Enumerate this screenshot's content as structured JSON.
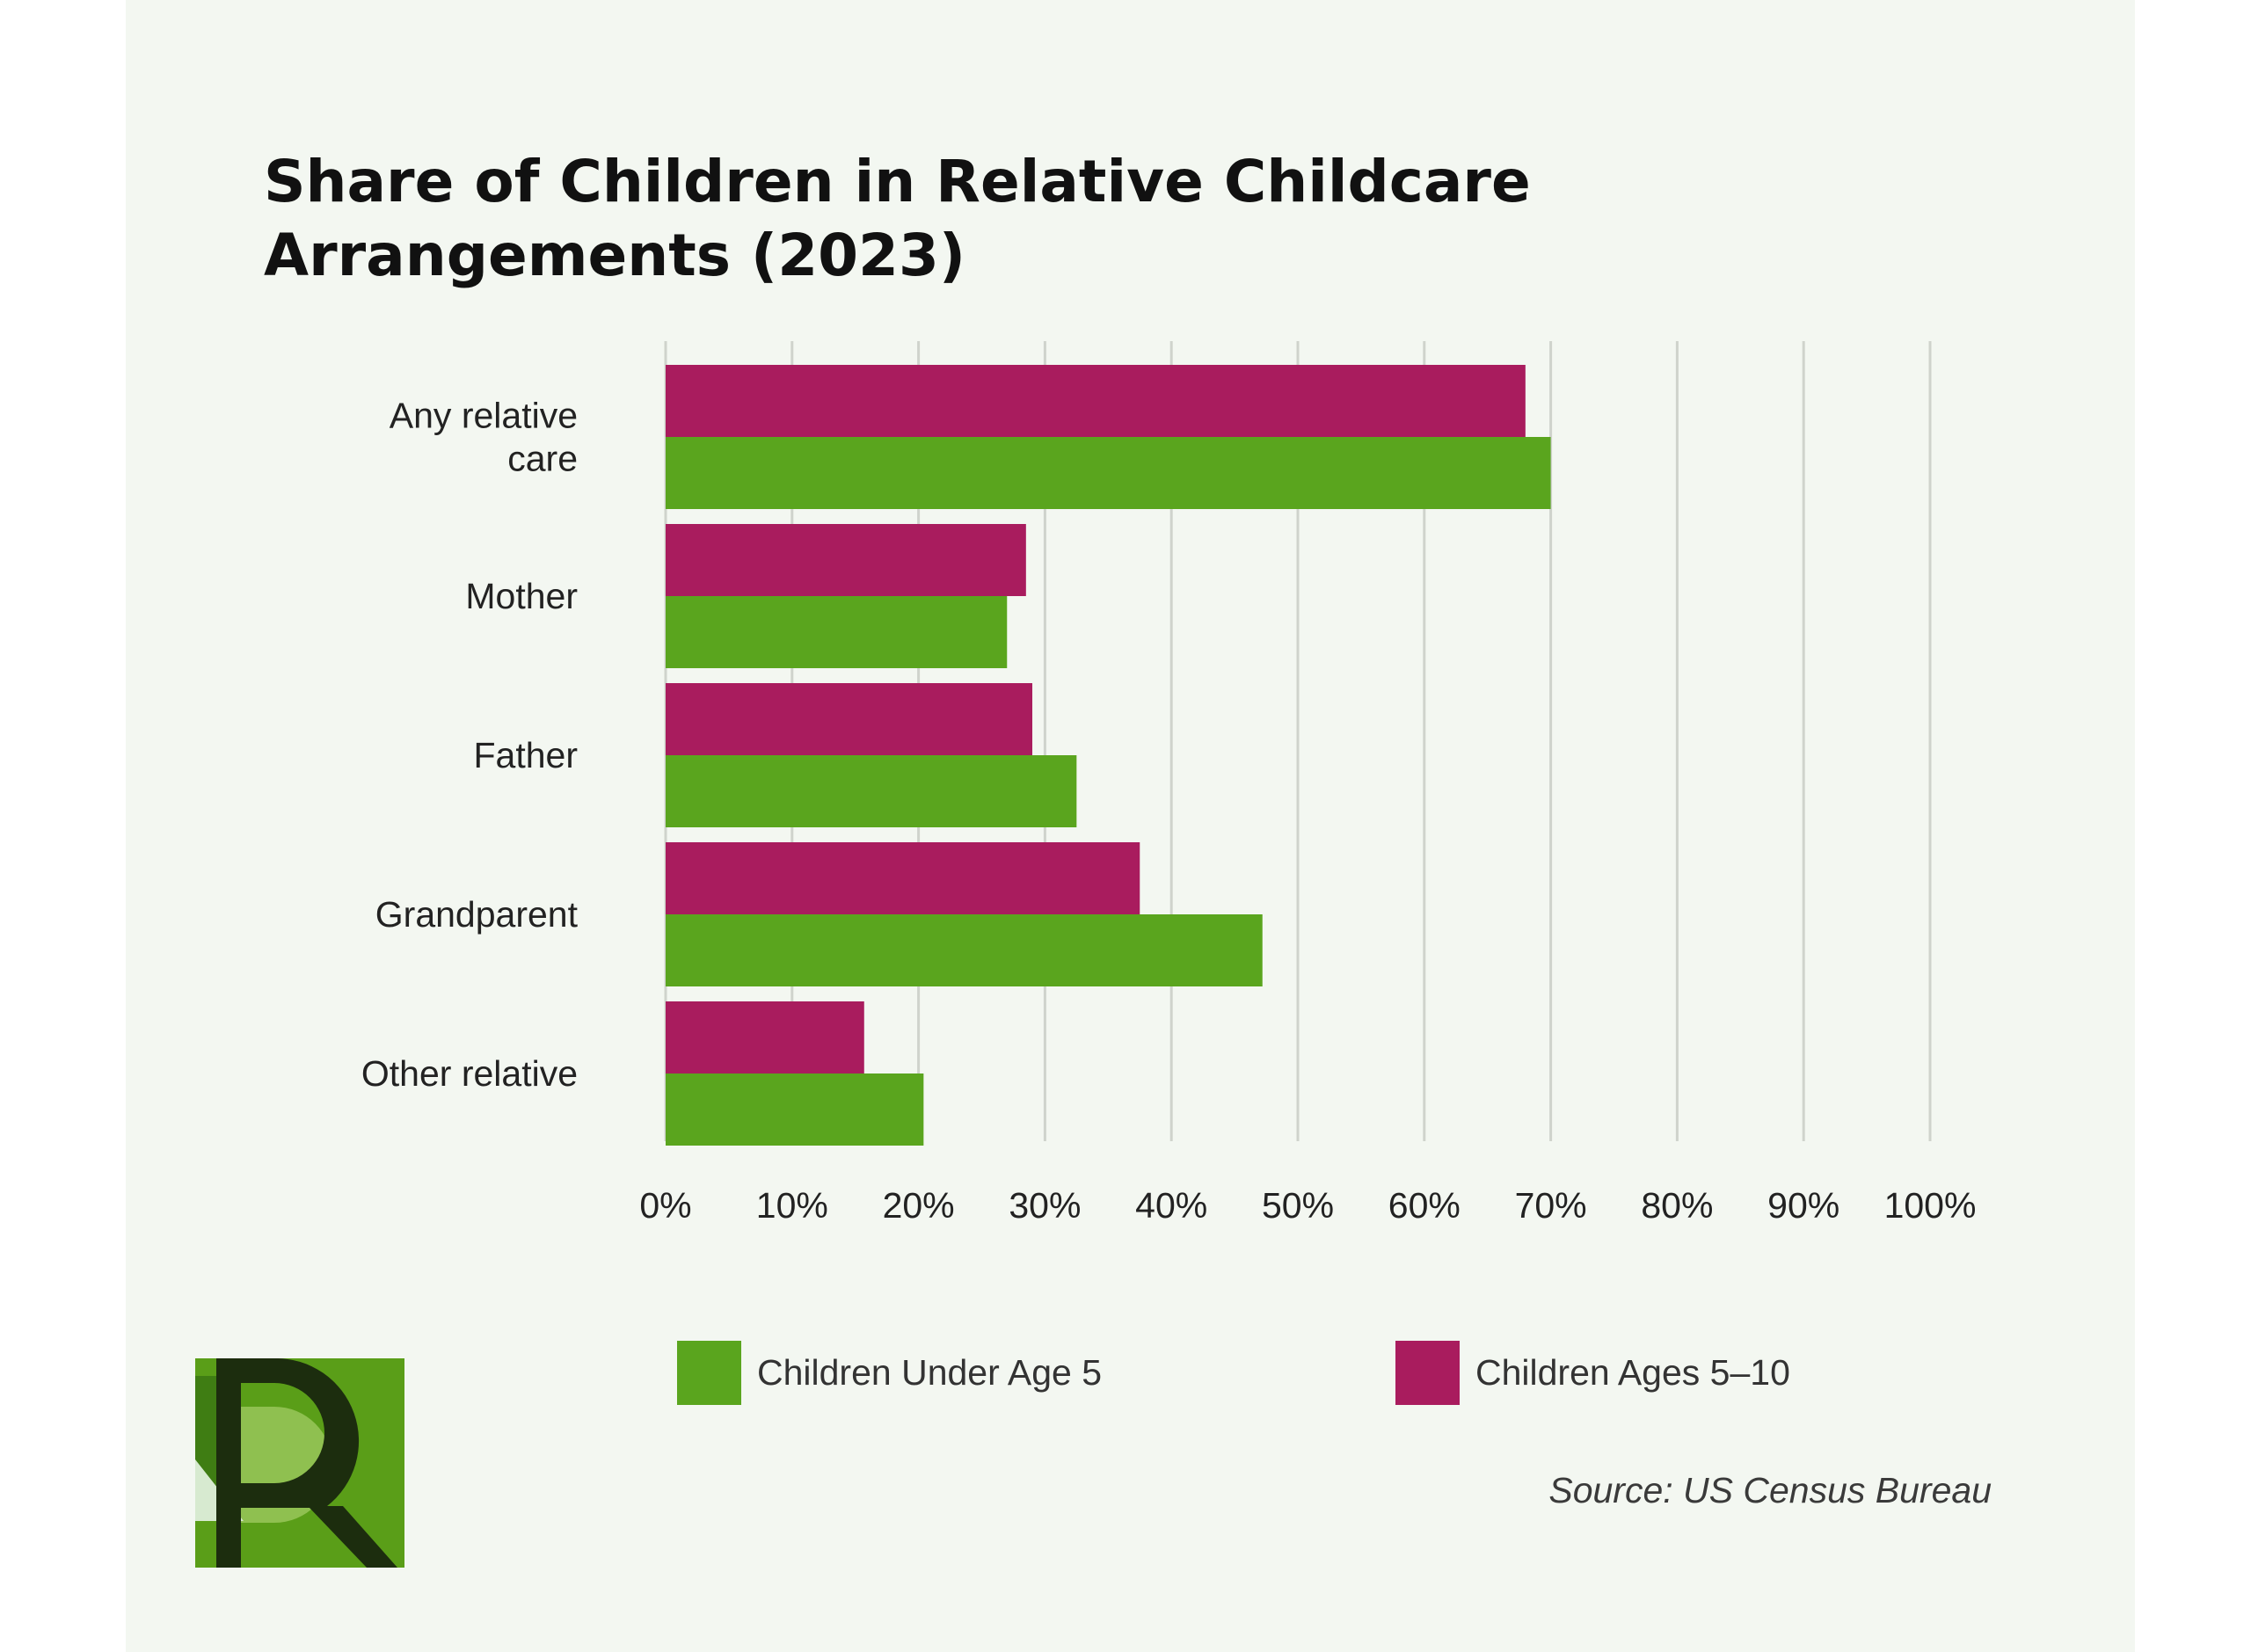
{
  "chart_data": {
    "type": "bar",
    "orientation": "horizontal",
    "title": "Share of Children in Relative Childcare Arrangements (2023)",
    "categories": [
      "Any relative care",
      "Mother",
      "Father",
      "Grandparent",
      "Other relative"
    ],
    "series": [
      {
        "name": "Children Ages 5–10",
        "color": "#a91c5e",
        "values": [
          68,
          28.5,
          29,
          37.5,
          15.7
        ]
      },
      {
        "name": "Children Under Age 5",
        "color": "#5aa51e",
        "values": [
          70,
          27,
          32.5,
          47.2,
          20.4
        ]
      }
    ],
    "xlim": [
      0,
      100
    ],
    "x_ticks": [
      "0%",
      "10%",
      "20%",
      "30%",
      "40%",
      "50%",
      "60%",
      "70%",
      "80%",
      "90%",
      "100%"
    ],
    "grid": true,
    "legend_position": "bottom"
  },
  "legend": [
    {
      "label": "Children Under Age 5",
      "color": "#5aa51e"
    },
    {
      "label": "Children Ages 5–10",
      "color": "#a91c5e"
    }
  ],
  "source": "Source: US Census Bureau",
  "logo": {
    "letter": "R"
  }
}
